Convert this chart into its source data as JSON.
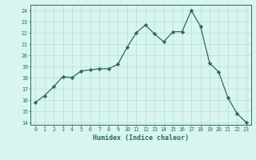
{
  "x": [
    0,
    1,
    2,
    3,
    4,
    5,
    6,
    7,
    8,
    9,
    10,
    11,
    12,
    13,
    14,
    15,
    16,
    17,
    18,
    19,
    20,
    21,
    22,
    23
  ],
  "y": [
    15.8,
    16.4,
    17.2,
    18.1,
    18.0,
    18.6,
    18.7,
    18.8,
    18.8,
    19.2,
    20.7,
    22.0,
    22.7,
    21.9,
    21.2,
    22.1,
    22.1,
    24.0,
    22.6,
    19.3,
    18.5,
    16.2,
    14.8,
    14.0
  ],
  "line_color": "#2d6b5e",
  "marker": "D",
  "marker_size": 2.2,
  "bg_color": "#d8f5f0",
  "grid_color": "#b8ddd8",
  "xlabel": "Humidex (Indice chaleur)",
  "ylabel_ticks": [
    14,
    15,
    16,
    17,
    18,
    19,
    20,
    21,
    22,
    23,
    24
  ],
  "xlim": [
    -0.5,
    23.5
  ],
  "ylim": [
    13.8,
    24.5
  ]
}
